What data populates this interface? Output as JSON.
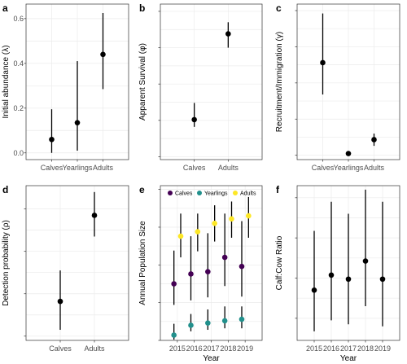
{
  "chart_data": [
    {
      "panel": "a",
      "type": "scatter",
      "ylabel": "Initial abundance (λ)",
      "categories": [
        "Calves",
        "Yearlings",
        "Adults"
      ],
      "values": [
        0.06,
        0.135,
        0.44
      ],
      "lower": [
        0.0,
        0.01,
        0.285
      ],
      "upper": [
        0.195,
        0.41,
        0.625
      ],
      "ylim": [
        -0.03,
        0.665
      ],
      "yticks": [
        0.0,
        0.2,
        0.4,
        0.6
      ],
      "tick_labels": [
        "0.0",
        "0.2",
        "0.4",
        "0.6"
      ]
    },
    {
      "panel": "b",
      "type": "scatter",
      "ylabel": "Apparent Survival (φ)",
      "categories": [
        "Calves",
        "Adults"
      ],
      "values": [
        0.255,
        0.845
      ],
      "lower": [
        0.205,
        0.75
      ],
      "upper": [
        0.37,
        0.925
      ],
      "ylim": [
        -0.02,
        1.05
      ],
      "yticks": [
        0.0,
        0.25,
        0.5,
        0.75,
        1.0
      ],
      "tick_labels": [
        "",
        "",
        "",
        "",
        ""
      ]
    },
    {
      "panel": "c",
      "type": "scatter",
      "ylabel": "Recruitment/Immigration (γ)",
      "categories": [
        "Calves",
        "Yearlings",
        "Adults"
      ],
      "values": [
        0.64,
        0.012,
        0.108
      ],
      "lower": [
        0.42,
        0.012,
        0.065
      ],
      "upper": [
        0.98,
        0.012,
        0.15
      ],
      "ylim": [
        -0.03,
        1.045
      ],
      "yticks": [
        0.0,
        0.25,
        0.5,
        0.75,
        1.0
      ],
      "tick_labels": [
        "",
        "",
        "",
        "",
        ""
      ]
    },
    {
      "panel": "d",
      "type": "scatter",
      "ylabel": "Detection probability (ρ)",
      "categories": [
        "Calves",
        "Adults"
      ],
      "values": [
        0.182,
        0.385
      ],
      "lower": [
        0.115,
        0.335
      ],
      "upper": [
        0.255,
        0.44
      ],
      "ylim": [
        0.09,
        0.455
      ],
      "yticks": [
        0.1,
        0.2,
        0.3,
        0.4
      ],
      "tick_labels": [
        "",
        "",
        "",
        ""
      ]
    },
    {
      "panel": "e",
      "type": "scatter",
      "ylabel": "Annual Population Size",
      "xlabel": "Year",
      "categories": [
        "2015",
        "2016",
        "2017",
        "2018",
        "2019"
      ],
      "legend": [
        {
          "name": "Calves",
          "color": "#440154"
        },
        {
          "name": "Yearlings",
          "color": "#21908c"
        },
        {
          "name": "Adults",
          "color": "#fde725"
        }
      ],
      "series": [
        {
          "name": "Calves",
          "color": "#440154",
          "offset": -0.2,
          "values": [
            75,
            88,
            91,
            110,
            98
          ],
          "lower": [
            47,
            53,
            57,
            72,
            58
          ],
          "upper": [
            119,
            138,
            142,
            168,
            158
          ]
        },
        {
          "name": "Yearlings",
          "color": "#21908c",
          "offset": -0.2,
          "values": [
            7,
            20,
            23,
            26,
            28
          ],
          "lower": [
            1,
            12,
            14,
            16,
            16
          ],
          "upper": [
            22,
            35,
            41,
            45,
            45
          ]
        },
        {
          "name": "Adults",
          "color": "#fde725",
          "offset": 0.2,
          "values": [
            138,
            144,
            155,
            161,
            165
          ],
          "lower": [
            110,
            118,
            131,
            136,
            136
          ],
          "upper": [
            168,
            168,
            179,
            184,
            190
          ]
        }
      ],
      "ylim": [
        0,
        205
      ],
      "yticks": [
        0,
        50,
        100,
        150,
        200
      ],
      "tick_labels": [
        "",
        "",
        "",
        "",
        ""
      ]
    },
    {
      "panel": "f",
      "type": "scatter",
      "ylabel": "Calf:Cow Ratio",
      "xlabel": "Year",
      "categories": [
        "2015",
        "2016",
        "2017",
        "2018",
        "2019"
      ],
      "values": [
        0.54,
        0.615,
        0.595,
        0.685,
        0.595
      ],
      "lower": [
        0.335,
        0.39,
        0.37,
        0.46,
        0.36
      ],
      "upper": [
        0.835,
        0.98,
        0.92,
        1.04,
        0.98
      ],
      "ylim": [
        0.29,
        1.06
      ],
      "yticks": [
        0.4,
        0.6,
        0.8,
        1.0
      ],
      "tick_labels": [
        "",
        "",
        "",
        ""
      ]
    }
  ]
}
